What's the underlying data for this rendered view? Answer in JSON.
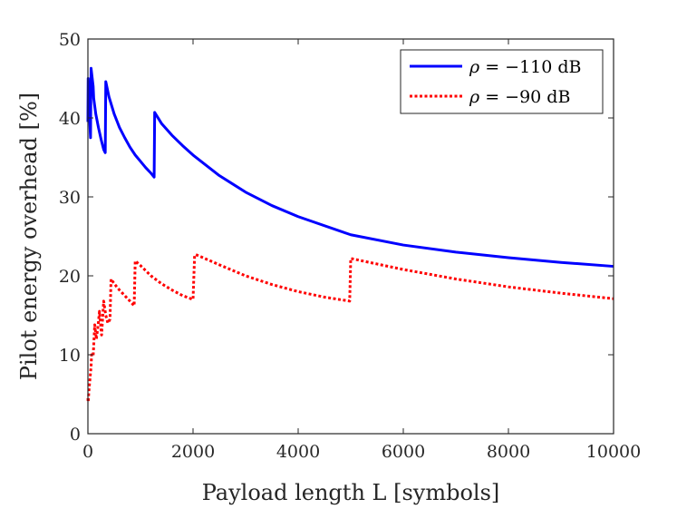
{
  "chart_data": {
    "type": "line",
    "title": "",
    "xlabel": "Payload length L [symbols]",
    "ylabel": "Pilot energy overhead [%]",
    "xlim": [
      0,
      10000
    ],
    "ylim": [
      0,
      50
    ],
    "xticks": [
      0,
      2000,
      4000,
      6000,
      8000,
      10000
    ],
    "yticks": [
      0,
      10,
      20,
      30,
      40,
      50
    ],
    "xtick_labels": [
      "0",
      "2000",
      "4000",
      "6000",
      "8000",
      "10000"
    ],
    "ytick_labels": [
      "0",
      "10",
      "20",
      "30",
      "40",
      "50"
    ],
    "grid": false,
    "legend_position": "top-right",
    "series": [
      {
        "name": "ρ = −110 dB",
        "color": "#0000ff",
        "style": "solid",
        "x": [
          0,
          5,
          20,
          50,
          60,
          100,
          110,
          150,
          200,
          250,
          300,
          330,
          340,
          400,
          500,
          600,
          700,
          800,
          900,
          1000,
          1100,
          1200,
          1260,
          1270,
          1400,
          1600,
          1800,
          2000,
          2500,
          3000,
          3500,
          4000,
          5000,
          6000,
          7000,
          8000,
          9000,
          10000
        ],
        "y": [
          39.5,
          45,
          41.5,
          37.5,
          46.3,
          44,
          42.5,
          40.5,
          38.8,
          37.3,
          36,
          35.6,
          44.6,
          42.7,
          40.5,
          38.8,
          37.5,
          36.3,
          35.3,
          34.5,
          33.7,
          33.0,
          32.5,
          40.7,
          39.3,
          37.8,
          36.5,
          35.3,
          32.7,
          30.6,
          28.9,
          27.5,
          25.2,
          23.9,
          23.0,
          22.3,
          21.7,
          21.2
        ]
      },
      {
        "name": "ρ = −90 dB",
        "color": "#ff0000",
        "style": "dotted",
        "x": [
          0,
          5,
          20,
          40,
          60,
          70,
          100,
          130,
          160,
          190,
          220,
          260,
          300,
          340,
          380,
          420,
          440,
          500,
          600,
          700,
          800,
          880,
          900,
          1000,
          1200,
          1400,
          1600,
          1800,
          2000,
          2030,
          2050,
          2500,
          3000,
          3500,
          4000,
          4500,
          4980,
          5000,
          5500,
          6000,
          7000,
          8000,
          9000,
          10000
        ],
        "y": [
          4.5,
          4.0,
          5.5,
          7.0,
          8.5,
          10.0,
          9.8,
          13.8,
          12.0,
          13.5,
          15.5,
          12.5,
          16.8,
          15.0,
          14.0,
          14.5,
          19.6,
          19.0,
          18.2,
          17.5,
          16.8,
          16.2,
          21.9,
          21.3,
          20.0,
          19.0,
          18.2,
          17.5,
          17.0,
          22.6,
          22.7,
          21.4,
          20.0,
          18.9,
          18.0,
          17.3,
          16.8,
          22.2,
          21.5,
          20.8,
          19.6,
          18.6,
          17.8,
          17.1
        ]
      }
    ]
  },
  "legend": {
    "entries": [
      {
        "symbol": "ρ",
        "label": " = −110 dB"
      },
      {
        "symbol": "ρ",
        "label": " = −90 dB"
      }
    ]
  }
}
